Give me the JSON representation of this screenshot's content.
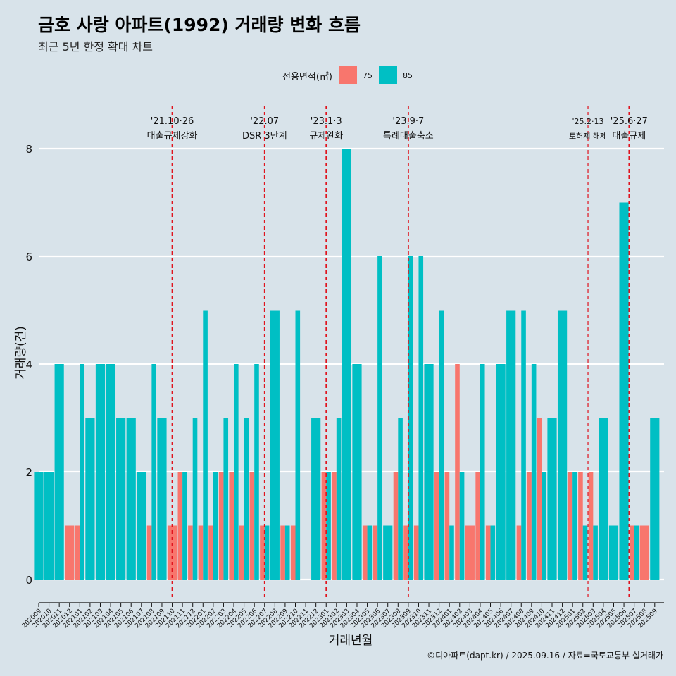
{
  "colors": {
    "background": "#d8e3ea",
    "series_75": "#f8766d",
    "series_85": "#00bfc4",
    "event_line": "#e0141e",
    "grid": "#ffffff"
  },
  "caption": "©디아파트(dapt.kr) / 2025.09.16 / 자료=국토교통부 실거래가",
  "chart_data": {
    "type": "bar",
    "title": "금호 사랑 아파트(1992) 거래량 변화 흐름",
    "subtitle": "최근 5년 한정 확대 차트",
    "xlabel": "거래년월",
    "ylabel": "거래량(건)",
    "ylim": [
      0,
      8
    ],
    "yticks": [
      0,
      2,
      4,
      6,
      8
    ],
    "grid": true,
    "legend": {
      "title": "전용면적(㎡)",
      "position": "top",
      "entries": [
        "75",
        "85"
      ]
    },
    "categories": [
      "202009",
      "202010",
      "202011",
      "202012",
      "202101",
      "202102",
      "202103",
      "202104",
      "202105",
      "202106",
      "202107",
      "202108",
      "202109",
      "202110",
      "202111",
      "202112",
      "202201",
      "202202",
      "202203",
      "202204",
      "202205",
      "202206",
      "202207",
      "202208",
      "202209",
      "202210",
      "202211",
      "202212",
      "202301",
      "202302",
      "202303",
      "202304",
      "202305",
      "202306",
      "202307",
      "202308",
      "202309",
      "202310",
      "202311",
      "202312",
      "202401",
      "202402",
      "202403",
      "202404",
      "202405",
      "202406",
      "202407",
      "202408",
      "202409",
      "202410",
      "202411",
      "202412",
      "202501",
      "202502",
      "202503",
      "202504",
      "202505",
      "202506",
      "202507",
      "202508",
      "202509"
    ],
    "series": [
      {
        "name": "75",
        "values": [
          0,
          0,
          0,
          1,
          1,
          0,
          0,
          0,
          0,
          0,
          0,
          1,
          0,
          1,
          2,
          1,
          1,
          1,
          2,
          2,
          1,
          2,
          1,
          0,
          1,
          1,
          0,
          0,
          2,
          2,
          0,
          0,
          1,
          1,
          0,
          2,
          1,
          1,
          0,
          2,
          2,
          4,
          1,
          2,
          1,
          0,
          0,
          1,
          2,
          3,
          0,
          0,
          2,
          2,
          2,
          0,
          0,
          0,
          1,
          1,
          0
        ]
      },
      {
        "name": "85",
        "values": [
          2,
          2,
          4,
          0,
          4,
          3,
          4,
          4,
          3,
          3,
          2,
          4,
          3,
          0,
          2,
          3,
          5,
          2,
          3,
          4,
          3,
          4,
          1,
          5,
          1,
          5,
          0,
          3,
          2,
          3,
          8,
          4,
          1,
          6,
          1,
          3,
          6,
          6,
          4,
          5,
          1,
          2,
          0,
          4,
          1,
          4,
          5,
          5,
          4,
          2,
          3,
          5,
          2,
          1,
          1,
          3,
          1,
          7,
          1,
          0,
          3
        ]
      }
    ],
    "events": [
      {
        "x": 13,
        "date": "'21.10·26",
        "label": "대출규제강화"
      },
      {
        "x": 22,
        "date": "'22.07",
        "label": "DSR 3단계"
      },
      {
        "x": 28,
        "date": "'23.1·3",
        "label": "규제완화"
      },
      {
        "x": 36,
        "date": "'23.9·7",
        "label": "특례대출축소"
      },
      {
        "x": 53.5,
        "date": "'25.2·13",
        "label": "토허제 해제",
        "small": true
      },
      {
        "x": 57.5,
        "date": "'25.6·27",
        "label": "대출규제"
      }
    ]
  }
}
